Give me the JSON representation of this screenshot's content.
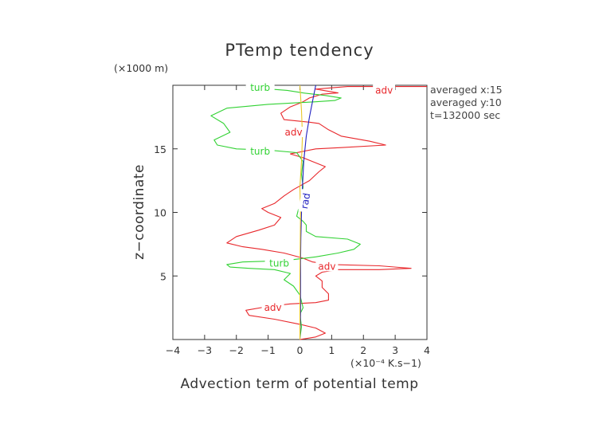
{
  "chart_data": {
    "type": "line",
    "title": "PTemp tendency",
    "xlabel": "Advection term of potential temp",
    "ylabel": "z−coordinate",
    "x_unit": "(×10⁻⁴ K.s−1)",
    "y_unit": "(×1000 m)",
    "xlim": [
      -4,
      4
    ],
    "ylim": [
      0,
      20
    ],
    "x_ticks": [
      -4,
      -3,
      -2,
      -1,
      0,
      1,
      2,
      3,
      4
    ],
    "x_tick_labels": [
      "−4",
      "−3",
      "−2",
      "−1",
      "0",
      "1",
      "2",
      "3",
      "4"
    ],
    "y_ticks": [
      5,
      10,
      15
    ],
    "y_tick_labels": [
      "5",
      "10",
      "15"
    ],
    "grid": false,
    "annotations": [
      "averaged  x:15",
      "averaged  y:10",
      "t=132000 sec"
    ],
    "series": [
      {
        "name": "adv",
        "color": "#e8272b",
        "label_points": [
          [
            2.65,
            19.6
          ],
          [
            -0.2,
            16.3
          ],
          [
            -0.85,
            2.5
          ],
          [
            0.85,
            5.75
          ]
        ],
        "points": [
          [
            0.0,
            0.0
          ],
          [
            0.5,
            0.2
          ],
          [
            0.8,
            0.5
          ],
          [
            0.5,
            0.9
          ],
          [
            0.0,
            1.2
          ],
          [
            -0.8,
            1.6
          ],
          [
            -1.6,
            1.9
          ],
          [
            -1.7,
            2.3
          ],
          [
            -1.0,
            2.6
          ],
          [
            -0.3,
            2.8
          ],
          [
            0.5,
            2.9
          ],
          [
            0.9,
            3.1
          ],
          [
            0.9,
            3.6
          ],
          [
            0.7,
            4.1
          ],
          [
            0.7,
            4.6
          ],
          [
            0.5,
            5.0
          ],
          [
            0.7,
            5.3
          ],
          [
            1.2,
            5.5
          ],
          [
            2.5,
            5.5
          ],
          [
            3.5,
            5.6
          ],
          [
            2.5,
            5.8
          ],
          [
            1.0,
            5.9
          ],
          [
            0.4,
            6.1
          ],
          [
            0.1,
            6.4
          ],
          [
            -0.5,
            6.8
          ],
          [
            -1.2,
            7.1
          ],
          [
            -1.8,
            7.3
          ],
          [
            -2.3,
            7.6
          ],
          [
            -2.0,
            8.1
          ],
          [
            -1.3,
            8.6
          ],
          [
            -0.8,
            9.0
          ],
          [
            -0.6,
            9.6
          ],
          [
            -1.0,
            10.0
          ],
          [
            -1.2,
            10.3
          ],
          [
            -0.8,
            10.7
          ],
          [
            -0.5,
            11.3
          ],
          [
            -0.2,
            11.8
          ],
          [
            0.3,
            12.5
          ],
          [
            0.6,
            13.2
          ],
          [
            0.8,
            13.6
          ],
          [
            0.4,
            14.0
          ],
          [
            0.1,
            14.3
          ],
          [
            -0.3,
            14.6
          ],
          [
            0.5,
            15.0
          ],
          [
            1.3,
            15.1
          ],
          [
            2.7,
            15.3
          ],
          [
            2.2,
            15.6
          ],
          [
            1.3,
            16.0
          ],
          [
            0.9,
            16.5
          ],
          [
            0.6,
            17.0
          ],
          [
            0.3,
            17.1
          ],
          [
            -0.5,
            17.3
          ],
          [
            -0.6,
            17.8
          ],
          [
            -0.3,
            18.3
          ],
          [
            0.1,
            18.7
          ],
          [
            0.3,
            19.0
          ],
          [
            0.7,
            19.3
          ],
          [
            1.2,
            19.4
          ],
          [
            0.5,
            19.7
          ],
          [
            1.5,
            19.9
          ],
          [
            4.0,
            19.9
          ]
        ]
      },
      {
        "name": "turb",
        "color": "#32d234",
        "label_points": [
          [
            -1.25,
            19.8
          ],
          [
            -1.25,
            14.8
          ],
          [
            -0.65,
            6.0
          ]
        ],
        "points": [
          [
            0.0,
            0.1
          ],
          [
            0.05,
            1.0
          ],
          [
            0.0,
            2.0
          ],
          [
            0.1,
            2.5
          ],
          [
            0.0,
            3.5
          ],
          [
            -0.2,
            4.2
          ],
          [
            -0.5,
            4.7
          ],
          [
            -0.3,
            5.2
          ],
          [
            -0.8,
            5.5
          ],
          [
            -1.6,
            5.6
          ],
          [
            -2.2,
            5.7
          ],
          [
            -2.3,
            5.9
          ],
          [
            -1.8,
            6.1
          ],
          [
            -0.5,
            6.2
          ],
          [
            0.5,
            6.5
          ],
          [
            1.2,
            6.8
          ],
          [
            1.7,
            7.1
          ],
          [
            1.9,
            7.5
          ],
          [
            1.5,
            7.9
          ],
          [
            0.5,
            8.1
          ],
          [
            0.2,
            8.5
          ],
          [
            0.2,
            9.0
          ],
          [
            0.1,
            9.3
          ],
          [
            -0.1,
            9.7
          ],
          [
            -0.05,
            10.2
          ],
          [
            0.1,
            10.6
          ],
          [
            0.05,
            11.2
          ],
          [
            0.1,
            12.0
          ],
          [
            0.05,
            13.0
          ],
          [
            0.1,
            14.0
          ],
          [
            -0.1,
            14.7
          ],
          [
            -1.0,
            14.9
          ],
          [
            -2.0,
            15.0
          ],
          [
            -2.6,
            15.3
          ],
          [
            -2.7,
            15.7
          ],
          [
            -2.2,
            16.3
          ],
          [
            -2.4,
            17.0
          ],
          [
            -2.8,
            17.6
          ],
          [
            -2.3,
            18.2
          ],
          [
            -1.0,
            18.5
          ],
          [
            0.5,
            18.7
          ],
          [
            1.1,
            18.8
          ],
          [
            1.3,
            19.0
          ],
          [
            0.8,
            19.2
          ],
          [
            0.1,
            19.4
          ],
          [
            -0.4,
            19.6
          ],
          [
            -1.7,
            19.85
          ]
        ]
      },
      {
        "name": "rad",
        "color": "#2020c0",
        "label_points": [
          [
            0.18,
            10.9
          ]
        ],
        "points": [
          [
            0.0,
            0.0
          ],
          [
            0.02,
            2.0
          ],
          [
            0.02,
            4.0
          ],
          [
            0.02,
            6.0
          ],
          [
            0.03,
            8.0
          ],
          [
            0.05,
            10.0
          ],
          [
            0.08,
            12.0
          ],
          [
            0.12,
            14.0
          ],
          [
            0.2,
            16.0
          ],
          [
            0.3,
            17.5
          ],
          [
            0.42,
            19.0
          ],
          [
            0.5,
            20.0
          ]
        ]
      },
      {
        "name": "",
        "color": "#e8c82a",
        "label_points": [],
        "points": [
          [
            0.0,
            0.0
          ],
          [
            0.0,
            5.0
          ],
          [
            0.02,
            10.0
          ],
          [
            0.0,
            12.0
          ],
          [
            0.05,
            14.0
          ],
          [
            0.08,
            16.0
          ],
          [
            0.05,
            18.0
          ],
          [
            0.0,
            20.0
          ]
        ]
      }
    ]
  }
}
